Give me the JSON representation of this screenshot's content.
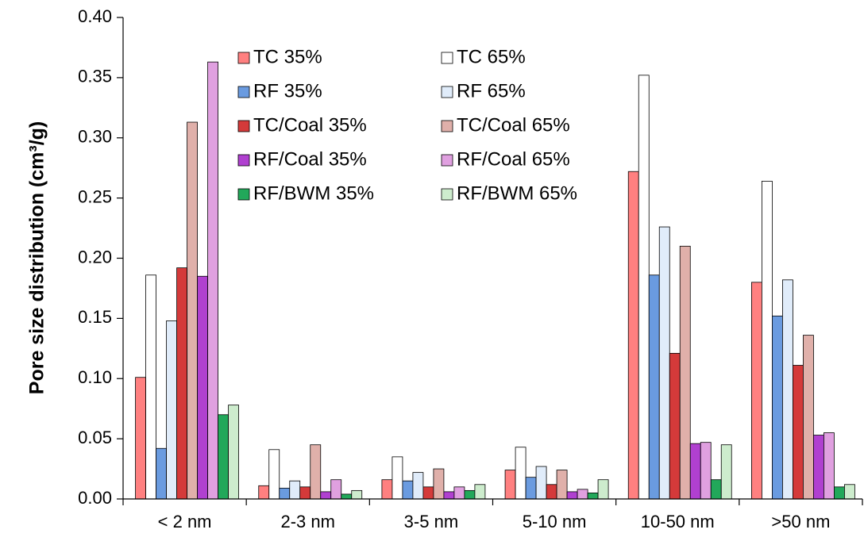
{
  "chart_data": {
    "type": "bar",
    "y_label": "Pore size distribution (cm³/g)",
    "categories": [
      "< 2 nm",
      "2-3 nm",
      "3-5 nm",
      "5-10 nm",
      "10-50 nm",
      ">50 nm"
    ],
    "series": [
      {
        "name": "TC 35%",
        "color": "#ff8080",
        "values": [
          0.101,
          0.011,
          0.016,
          0.024,
          0.272,
          0.18
        ]
      },
      {
        "name": "TC 65%",
        "color": "#ffffff",
        "values": [
          0.186,
          0.041,
          0.035,
          0.043,
          0.352,
          0.264
        ]
      },
      {
        "name": "RF 35%",
        "color": "#6a9be0",
        "values": [
          0.042,
          0.009,
          0.015,
          0.018,
          0.186,
          0.152
        ]
      },
      {
        "name": "RF 65%",
        "color": "#e0ecfa",
        "values": [
          0.148,
          0.015,
          0.022,
          0.027,
          0.226,
          0.182
        ]
      },
      {
        "name": "TC/Coal 35%",
        "color": "#d43a3a",
        "values": [
          0.192,
          0.01,
          0.01,
          0.012,
          0.121,
          0.111
        ]
      },
      {
        "name": "TC/Coal 65%",
        "color": "#e0b0aa",
        "values": [
          0.313,
          0.045,
          0.025,
          0.024,
          0.21,
          0.136
        ]
      },
      {
        "name": "RF/Coal 35%",
        "color": "#b040d0",
        "values": [
          0.185,
          0.006,
          0.006,
          0.006,
          0.046,
          0.053
        ]
      },
      {
        "name": "RF/Coal 65%",
        "color": "#e0a0e0",
        "values": [
          0.363,
          0.016,
          0.01,
          0.008,
          0.047,
          0.055
        ]
      },
      {
        "name": "RF/BWM 35%",
        "color": "#22a85a",
        "values": [
          0.07,
          0.004,
          0.007,
          0.005,
          0.016,
          0.01
        ]
      },
      {
        "name": "RF/BWM 65%",
        "color": "#cdeccd",
        "values": [
          0.078,
          0.007,
          0.012,
          0.016,
          0.045,
          0.012
        ]
      }
    ],
    "ylim": [
      0,
      0.4
    ],
    "yticks": [
      {
        "value": 0,
        "label": "0.00"
      },
      {
        "value": 0.05,
        "label": "0.05"
      },
      {
        "value": 0.1,
        "label": "0.10"
      },
      {
        "value": 0.15,
        "label": "0.15"
      },
      {
        "value": 0.2,
        "label": "0.20"
      },
      {
        "value": 0.25,
        "label": "0.25"
      },
      {
        "value": 0.3,
        "label": "0.30"
      },
      {
        "value": 0.35,
        "label": "0.35"
      },
      {
        "value": 0.4,
        "label": "0.40"
      }
    ],
    "legend": "upper left"
  }
}
